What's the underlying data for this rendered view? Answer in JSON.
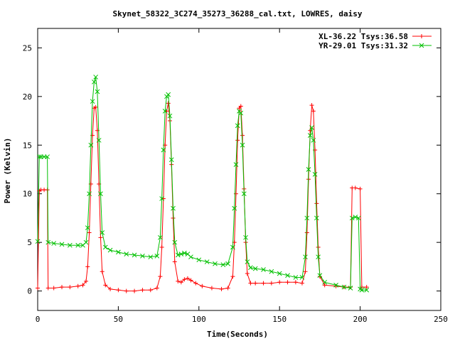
{
  "chart_data": {
    "type": "line",
    "title": "Skynet_58322_3C274_35273_36288_cal.txt, LOWRES, daisy",
    "xlabel": "Time(Seconds)",
    "ylabel": "Power (Kelvin)",
    "xlim": [
      0,
      250
    ],
    "ylim": [
      -2,
      27
    ],
    "xticks": [
      0,
      50,
      100,
      150,
      200,
      250
    ],
    "yticks": [
      0,
      5,
      10,
      15,
      20,
      25
    ],
    "grid": false,
    "legend_position": "top-right",
    "series": [
      {
        "name": "XL-36.22 Tsys:36.58",
        "color": "#ff0000",
        "marker": "plus",
        "points": [
          [
            0,
            0.3
          ],
          [
            1,
            10.3
          ],
          [
            2,
            10.4
          ],
          [
            4,
            10.4
          ],
          [
            6,
            10.4
          ],
          [
            6.5,
            0.3
          ],
          [
            10,
            0.3
          ],
          [
            15,
            0.4
          ],
          [
            20,
            0.4
          ],
          [
            25,
            0.5
          ],
          [
            28,
            0.6
          ],
          [
            30,
            1.0
          ],
          [
            31,
            2.5
          ],
          [
            32,
            6.0
          ],
          [
            33,
            11.0
          ],
          [
            34,
            16.0
          ],
          [
            35,
            18.8
          ],
          [
            36,
            18.9
          ],
          [
            37,
            16.5
          ],
          [
            38,
            11.0
          ],
          [
            39,
            5.5
          ],
          [
            40,
            2.0
          ],
          [
            42,
            0.6
          ],
          [
            45,
            0.2
          ],
          [
            50,
            0.1
          ],
          [
            55,
            0.0
          ],
          [
            60,
            0.0
          ],
          [
            65,
            0.1
          ],
          [
            70,
            0.1
          ],
          [
            74,
            0.3
          ],
          [
            76,
            1.5
          ],
          [
            77,
            4.5
          ],
          [
            78,
            9.5
          ],
          [
            79,
            15.0
          ],
          [
            80,
            18.5
          ],
          [
            81,
            19.3
          ],
          [
            82,
            17.5
          ],
          [
            83,
            13.0
          ],
          [
            84,
            7.5
          ],
          [
            85,
            3.0
          ],
          [
            87,
            1.0
          ],
          [
            89,
            0.9
          ],
          [
            91,
            1.2
          ],
          [
            93,
            1.3
          ],
          [
            95,
            1.1
          ],
          [
            98,
            0.8
          ],
          [
            102,
            0.5
          ],
          [
            108,
            0.3
          ],
          [
            114,
            0.2
          ],
          [
            118,
            0.3
          ],
          [
            121,
            1.5
          ],
          [
            122,
            5.0
          ],
          [
            123,
            10.0
          ],
          [
            124,
            15.5
          ],
          [
            125,
            18.8
          ],
          [
            126,
            19.0
          ],
          [
            127,
            16.0
          ],
          [
            128,
            10.5
          ],
          [
            129,
            5.0
          ],
          [
            130,
            1.8
          ],
          [
            132,
            0.8
          ],
          [
            135,
            0.8
          ],
          [
            140,
            0.8
          ],
          [
            145,
            0.8
          ],
          [
            150,
            0.9
          ],
          [
            155,
            0.9
          ],
          [
            160,
            0.9
          ],
          [
            164,
            0.8
          ],
          [
            166,
            2.0
          ],
          [
            167,
            6.0
          ],
          [
            168,
            11.5
          ],
          [
            169,
            16.5
          ],
          [
            170,
            19.1
          ],
          [
            171,
            18.5
          ],
          [
            172,
            14.5
          ],
          [
            173,
            9.0
          ],
          [
            174,
            4.5
          ],
          [
            175,
            1.5
          ],
          [
            178,
            0.6
          ],
          [
            185,
            0.5
          ],
          [
            190,
            0.4
          ],
          [
            194,
            0.4
          ],
          [
            195,
            10.6
          ],
          [
            197,
            10.6
          ],
          [
            200,
            10.5
          ],
          [
            201,
            0.4
          ],
          [
            204,
            0.4
          ]
        ]
      },
      {
        "name": "YR-29.01 Tsys:31.32",
        "color": "#00c000",
        "marker": "cross",
        "points": [
          [
            0,
            5.1
          ],
          [
            1,
            13.8
          ],
          [
            2,
            13.8
          ],
          [
            4,
            13.8
          ],
          [
            6,
            13.8
          ],
          [
            6.5,
            5.0
          ],
          [
            10,
            4.9
          ],
          [
            15,
            4.8
          ],
          [
            20,
            4.7
          ],
          [
            25,
            4.7
          ],
          [
            28,
            4.7
          ],
          [
            30,
            5.0
          ],
          [
            31,
            6.5
          ],
          [
            32,
            10.0
          ],
          [
            33,
            15.0
          ],
          [
            34,
            19.5
          ],
          [
            35,
            21.5
          ],
          [
            36,
            22.0
          ],
          [
            37,
            20.5
          ],
          [
            38,
            15.5
          ],
          [
            39,
            10.0
          ],
          [
            40,
            6.0
          ],
          [
            42,
            4.5
          ],
          [
            45,
            4.2
          ],
          [
            50,
            4.0
          ],
          [
            55,
            3.8
          ],
          [
            60,
            3.7
          ],
          [
            65,
            3.6
          ],
          [
            70,
            3.5
          ],
          [
            74,
            3.6
          ],
          [
            76,
            5.5
          ],
          [
            77,
            9.5
          ],
          [
            78,
            14.5
          ],
          [
            79,
            18.5
          ],
          [
            80,
            20.0
          ],
          [
            81,
            20.2
          ],
          [
            82,
            18.0
          ],
          [
            83,
            13.5
          ],
          [
            84,
            8.5
          ],
          [
            85,
            5.0
          ],
          [
            87,
            3.7
          ],
          [
            89,
            3.8
          ],
          [
            91,
            3.9
          ],
          [
            93,
            3.8
          ],
          [
            95,
            3.5
          ],
          [
            100,
            3.2
          ],
          [
            105,
            3.0
          ],
          [
            110,
            2.8
          ],
          [
            115,
            2.7
          ],
          [
            118,
            2.8
          ],
          [
            121,
            4.5
          ],
          [
            122,
            8.5
          ],
          [
            123,
            13.0
          ],
          [
            124,
            17.0
          ],
          [
            125,
            18.5
          ],
          [
            126,
            18.3
          ],
          [
            127,
            15.0
          ],
          [
            128,
            10.0
          ],
          [
            129,
            5.5
          ],
          [
            130,
            3.0
          ],
          [
            132,
            2.4
          ],
          [
            135,
            2.3
          ],
          [
            140,
            2.2
          ],
          [
            145,
            2.0
          ],
          [
            150,
            1.8
          ],
          [
            155,
            1.6
          ],
          [
            160,
            1.4
          ],
          [
            164,
            1.4
          ],
          [
            166,
            3.5
          ],
          [
            167,
            7.5
          ],
          [
            168,
            12.5
          ],
          [
            169,
            16.0
          ],
          [
            170,
            16.8
          ],
          [
            171,
            15.5
          ],
          [
            172,
            12.0
          ],
          [
            173,
            7.5
          ],
          [
            174,
            3.5
          ],
          [
            175,
            1.6
          ],
          [
            178,
            0.9
          ],
          [
            185,
            0.6
          ],
          [
            190,
            0.4
          ],
          [
            194,
            0.3
          ],
          [
            195,
            7.5
          ],
          [
            197,
            7.6
          ],
          [
            199,
            7.5
          ],
          [
            200,
            0.2
          ],
          [
            201,
            0.1
          ],
          [
            204,
            0.1
          ]
        ]
      }
    ]
  }
}
